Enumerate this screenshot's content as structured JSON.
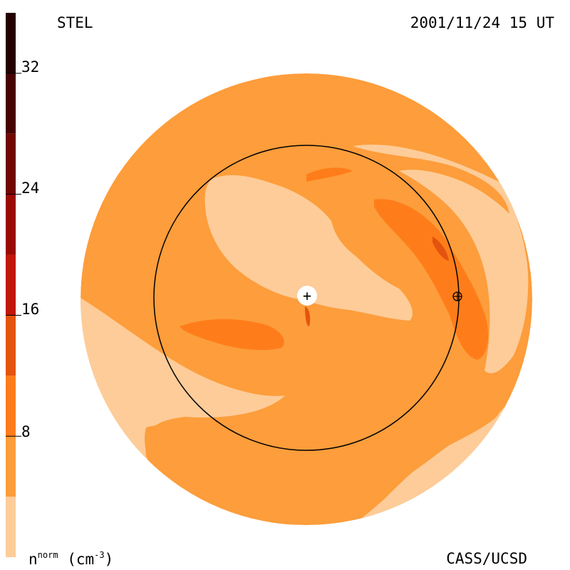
{
  "header": {
    "left_label": "STEL",
    "datetime": "2001/11/24 15 UT"
  },
  "footer": {
    "credit": "CASS/UCSD",
    "unit_base": "n",
    "unit_sup": "norm",
    "unit_rest": " (cm",
    "unit_exp": "-3",
    "unit_close": ")"
  },
  "colorbar": {
    "ticks": [
      "32",
      "24",
      "16",
      "8"
    ],
    "tick_values": [
      32,
      24,
      16,
      8
    ],
    "range": [
      0,
      36
    ],
    "bands": [
      {
        "from": 0,
        "to": 4,
        "color": "#fdcc99"
      },
      {
        "from": 4,
        "to": 8,
        "color": "#fd9d3b"
      },
      {
        "from": 8,
        "to": 12,
        "color": "#fe7d1a"
      },
      {
        "from": 12,
        "to": 16,
        "color": "#e4540e"
      },
      {
        "from": 16,
        "to": 20,
        "color": "#c1160a"
      },
      {
        "from": 20,
        "to": 24,
        "color": "#9a0a04"
      },
      {
        "from": 24,
        "to": 28,
        "color": "#720603"
      },
      {
        "from": 28,
        "to": 32,
        "color": "#480202"
      },
      {
        "from": 32,
        "to": 36,
        "color": "#250000"
      }
    ]
  },
  "colors": {
    "light": "#fdcc99",
    "base": "#fd9d3b",
    "mid": "#fe7d1a",
    "high": "#e4540e",
    "higher": "#c1160a"
  },
  "markers": {
    "sun": "+",
    "earth": "earth-symbol"
  }
}
